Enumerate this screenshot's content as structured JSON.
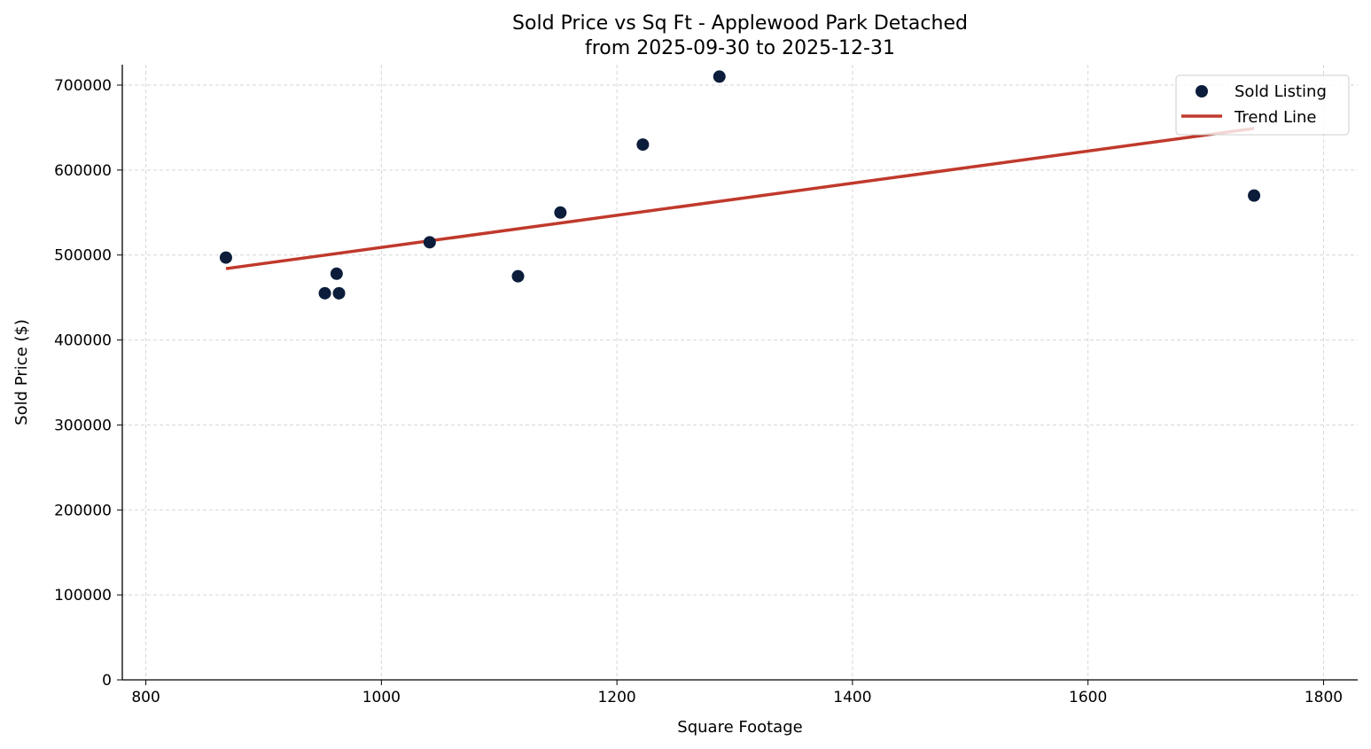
{
  "chart_data": {
    "type": "scatter",
    "title": "Sold Price vs Sq Ft - Applewood Park Detached",
    "subtitle": "from 2025-09-30 to 2025-12-31",
    "xlabel": "Square Footage",
    "ylabel": "Sold Price ($)",
    "xlim": [
      780,
      1829
    ],
    "ylim": [
      0,
      724000
    ],
    "xticks": [
      800,
      1000,
      1200,
      1400,
      1600,
      1800
    ],
    "yticks": [
      0,
      100000,
      200000,
      300000,
      400000,
      500000,
      600000,
      700000
    ],
    "grid": true,
    "legend_placement": "top-right",
    "series": [
      {
        "name": "Sold Listing",
        "kind": "scatter",
        "color": "#0b1d3a",
        "points": [
          {
            "x": 868,
            "y": 497000
          },
          {
            "x": 952,
            "y": 455000
          },
          {
            "x": 962,
            "y": 478000
          },
          {
            "x": 964,
            "y": 455000
          },
          {
            "x": 1041,
            "y": 515000
          },
          {
            "x": 1116,
            "y": 475000
          },
          {
            "x": 1152,
            "y": 550000
          },
          {
            "x": 1222,
            "y": 630000
          },
          {
            "x": 1287,
            "y": 710000
          },
          {
            "x": 1741,
            "y": 570000
          }
        ]
      },
      {
        "name": "Trend Line",
        "kind": "line",
        "color": "#c0392b",
        "points": [
          {
            "x": 868,
            "y": 484000
          },
          {
            "x": 1741,
            "y": 649000
          }
        ]
      }
    ]
  }
}
